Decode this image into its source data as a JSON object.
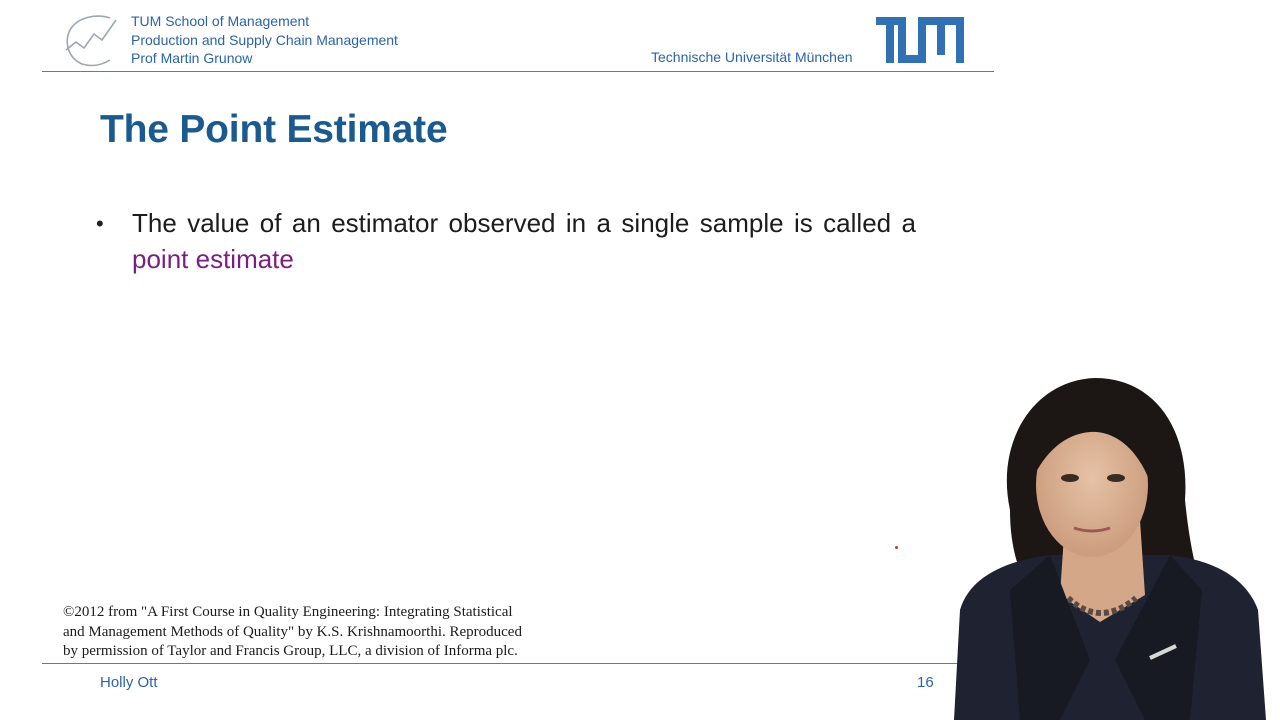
{
  "header": {
    "school": "TUM School of Management",
    "chair": "Production and Supply Chain Management",
    "professor": "Prof Martin Grunow",
    "university": "Technische Universität München",
    "logo_icon": "tum-logo",
    "chair_icon": "supply-chain-logo-icon"
  },
  "slide": {
    "title": "The Point Estimate",
    "bullets": [
      {
        "text_before": "The value of an estimator observed in a single sample is called a ",
        "highlight": "point estimate"
      }
    ]
  },
  "copyright": {
    "lines": [
      "©2012 from \"A First Course in Quality Engineering: Integrating Statistical",
      "and Management Methods of Quality\" by K.S. Krishnamoorthi. Reproduced",
      "by permission of Taylor and Francis Group, LLC, a division of Informa plc."
    ]
  },
  "footer": {
    "presenter": "Holly Ott",
    "page_number": "16"
  },
  "colors": {
    "brand_blue": "#2b63a8",
    "title_blue": "#1a5a8f",
    "highlight_purple": "#7a1f7f",
    "rule_blue": "#4d7fb9"
  }
}
